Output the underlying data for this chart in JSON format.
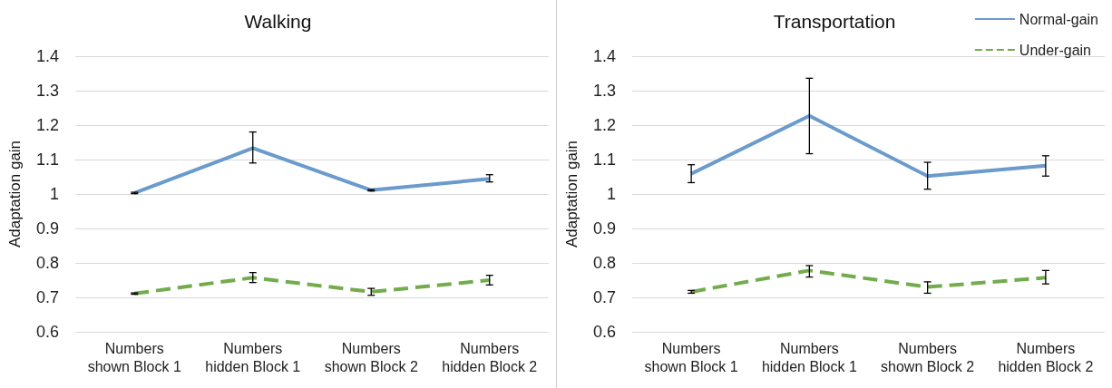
{
  "chart_data": [
    {
      "type": "line",
      "title": "Walking",
      "ylabel": "Adaptation gain",
      "categories": [
        "Numbers shown Block 1",
        "Numbers hidden Block 1",
        "Numbers shown Block 2",
        "Numbers hidden Block 2"
      ],
      "series": [
        {
          "color": "#6a9bcc",
          "line_style": "solid",
          "values": [
            1.003,
            1.133,
            1.011,
            1.044
          ],
          "errors": [
            0.002,
            [
              1.09,
              1.18
            ],
            0.002,
            [
              1.035,
              1.056
            ]
          ]
        },
        {
          "color": "#72ac4d",
          "line_style": "dashed",
          "values": [
            0.711,
            0.757,
            0.716,
            0.75
          ],
          "errors": [
            0.002,
            [
              0.743,
              0.772
            ],
            [
              0.706,
              0.726
            ],
            [
              0.736,
              0.764
            ]
          ]
        }
      ],
      "ylim": [
        0.6,
        1.4
      ],
      "yticks": [
        0.6,
        0.7,
        0.8,
        0.9,
        1,
        1.1,
        1.2,
        1.3,
        1.4
      ],
      "grid": "y",
      "legend": false,
      "marker": "none"
    },
    {
      "type": "line",
      "title": "Transportation",
      "ylabel": "Adaptation gain",
      "categories": [
        "Numbers shown Block 1",
        "Numbers hidden Block 1",
        "Numbers shown Block 2",
        "Numbers hidden Block 2"
      ],
      "series": [
        {
          "name": "Normal-gain",
          "color": "#6a9bcc",
          "line_style": "solid",
          "values": [
            1.059,
            1.227,
            1.052,
            1.082
          ],
          "errors": [
            [
              1.033,
              1.085
            ],
            [
              1.117,
              1.336
            ],
            [
              1.014,
              1.092
            ],
            [
              1.052,
              1.111
            ]
          ]
        },
        {
          "name": "Under-gain",
          "color": "#72ac4d",
          "line_style": "dashed",
          "values": [
            0.716,
            0.778,
            0.73,
            0.757
          ],
          "errors": [
            0.004,
            [
              0.759,
              0.792
            ],
            [
              0.712,
              0.745
            ],
            [
              0.739,
              0.778
            ]
          ]
        }
      ],
      "ylim": [
        0.6,
        1.4
      ],
      "yticks": [
        0.6,
        0.7,
        0.8,
        0.9,
        1,
        1.1,
        1.2,
        1.3,
        1.4
      ],
      "grid": "y",
      "legend": "top right",
      "marker": "none"
    }
  ]
}
